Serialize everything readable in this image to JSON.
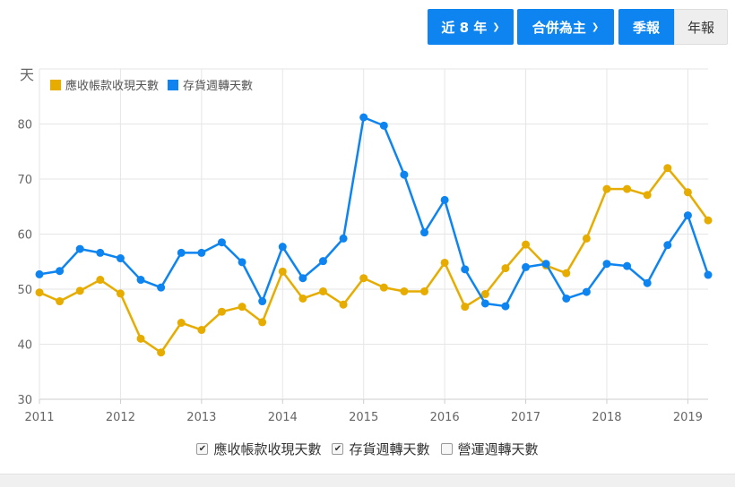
{
  "toolbar": {
    "period_label": "近 8 年",
    "scope_label": "合併為主",
    "quarterly_label": "季報",
    "annual_label": "年報"
  },
  "icons": {
    "dropdown": "chevron-down-icon",
    "check": "checkmark-icon"
  },
  "colors": {
    "receivable": "#e6ac00",
    "inventory": "#0d84f0",
    "accent": "#0d84f0"
  },
  "legend_bottom": [
    {
      "label": "應收帳款收現天數",
      "checked": true
    },
    {
      "label": "存貨週轉天數",
      "checked": true
    },
    {
      "label": "營運週轉天數",
      "checked": false
    }
  ],
  "chart_data": {
    "type": "line",
    "ylabel": "天",
    "ylim": [
      30,
      90
    ],
    "yticks": [
      30,
      40,
      50,
      60,
      70,
      80
    ],
    "xlim": [
      2011.0,
      2019.25
    ],
    "xticks": [
      "2011",
      "2012",
      "2013",
      "2014",
      "2015",
      "2016",
      "2017",
      "2018",
      "2019"
    ],
    "grid": true,
    "legend_position": "top-left",
    "x": [
      2011.0,
      2011.25,
      2011.5,
      2011.75,
      2012.0,
      2012.25,
      2012.5,
      2012.75,
      2013.0,
      2013.25,
      2013.5,
      2013.75,
      2014.0,
      2014.25,
      2014.5,
      2014.75,
      2015.0,
      2015.25,
      2015.5,
      2015.75,
      2016.0,
      2016.25,
      2016.5,
      2016.75,
      2017.0,
      2017.25,
      2017.5,
      2017.75,
      2018.0,
      2018.25,
      2018.5,
      2018.75,
      2019.0,
      2019.25
    ],
    "series": [
      {
        "name": "應收帳款收現天數",
        "color": "#e6ac00",
        "values": [
          49.4,
          47.8,
          49.7,
          51.7,
          49.2,
          41.0,
          38.5,
          43.9,
          42.6,
          45.9,
          46.8,
          44.0,
          53.2,
          48.3,
          49.6,
          47.2,
          52.0,
          50.3,
          49.6,
          49.6,
          54.8,
          46.8,
          49.1,
          53.8,
          58.1,
          54.3,
          52.9,
          59.2,
          68.2,
          68.2,
          67.1,
          72.0,
          67.6,
          62.5
        ]
      },
      {
        "name": "存貨週轉天數",
        "color": "#0d84f0",
        "values": [
          52.7,
          53.3,
          57.3,
          56.6,
          55.6,
          51.7,
          50.3,
          56.6,
          56.6,
          58.5,
          54.9,
          47.8,
          57.7,
          52.0,
          55.1,
          59.2,
          81.2,
          79.7,
          70.8,
          60.3,
          66.2,
          53.6,
          47.4,
          46.9,
          54.0,
          54.6,
          48.3,
          49.5,
          54.6,
          54.2,
          51.1,
          58.0,
          63.4,
          52.6
        ]
      }
    ]
  }
}
